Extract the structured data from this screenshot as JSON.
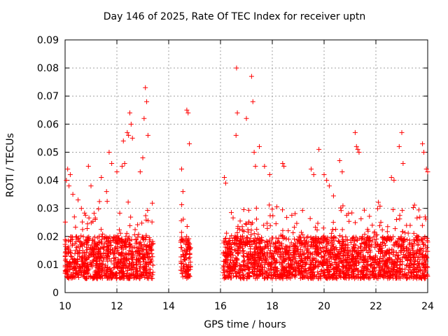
{
  "chart_data": {
    "type": "scatter",
    "title": "Day 146 of 2025, Rate Of TEC Index for receiver uptn",
    "xlabel": "GPS time / hours",
    "ylabel": "ROTI / TECUs",
    "xlim": [
      10,
      24
    ],
    "ylim": [
      0,
      0.09
    ],
    "xticks": [
      10,
      12,
      14,
      16,
      18,
      20,
      22,
      24
    ],
    "yticks": [
      0,
      0.01,
      0.02,
      0.03,
      0.04,
      0.05,
      0.06,
      0.07,
      0.08,
      0.09
    ],
    "ytick_labels": [
      "0",
      "0.01",
      "0.02",
      "0.03",
      "0.04",
      "0.05",
      "0.06",
      "0.07",
      "0.08",
      "0.09"
    ],
    "grid": true,
    "marker": "+",
    "series_color": "#ff0000",
    "coverage_hours": [
      [
        10.0,
        13.4
      ],
      [
        14.45,
        14.85
      ],
      [
        16.1,
        24.0
      ]
    ],
    "baseline_range": [
      0.005,
      0.02
    ],
    "series": [
      {
        "name": "ROTI",
        "x": [
          10.05,
          10.1,
          10.15,
          10.2,
          10.3,
          10.5,
          10.9,
          11.0,
          11.4,
          11.6,
          11.7,
          11.8,
          12.0,
          12.2,
          12.25,
          12.3,
          12.4,
          12.45,
          12.5,
          12.55,
          12.6,
          12.9,
          13.0,
          13.05,
          13.1,
          13.15,
          13.2,
          14.5,
          14.55,
          14.7,
          14.75,
          14.8,
          16.15,
          16.2,
          16.6,
          16.62,
          16.65,
          17.0,
          17.2,
          17.25,
          17.3,
          17.35,
          17.5,
          17.7,
          17.9,
          18.4,
          18.45,
          19.5,
          19.6,
          19.8,
          20.0,
          20.1,
          20.2,
          20.6,
          20.7,
          21.2,
          21.25,
          21.3,
          21.35,
          22.6,
          22.7,
          22.9,
          23.0,
          23.05,
          23.8,
          23.85,
          23.95,
          24.0
        ],
        "y": [
          0.04,
          0.044,
          0.038,
          0.042,
          0.035,
          0.033,
          0.045,
          0.038,
          0.041,
          0.036,
          0.05,
          0.046,
          0.043,
          0.045,
          0.054,
          0.046,
          0.057,
          0.056,
          0.064,
          0.06,
          0.055,
          0.043,
          0.048,
          0.062,
          0.073,
          0.068,
          0.056,
          0.044,
          0.036,
          0.065,
          0.064,
          0.053,
          0.041,
          0.039,
          0.056,
          0.08,
          0.064,
          0.062,
          0.077,
          0.068,
          0.05,
          0.045,
          0.052,
          0.045,
          0.042,
          0.046,
          0.045,
          0.044,
          0.042,
          0.051,
          0.042,
          0.04,
          0.038,
          0.047,
          0.043,
          0.057,
          0.052,
          0.051,
          0.05,
          0.041,
          0.04,
          0.052,
          0.057,
          0.046,
          0.053,
          0.05,
          0.044,
          0.043
        ]
      }
    ]
  }
}
